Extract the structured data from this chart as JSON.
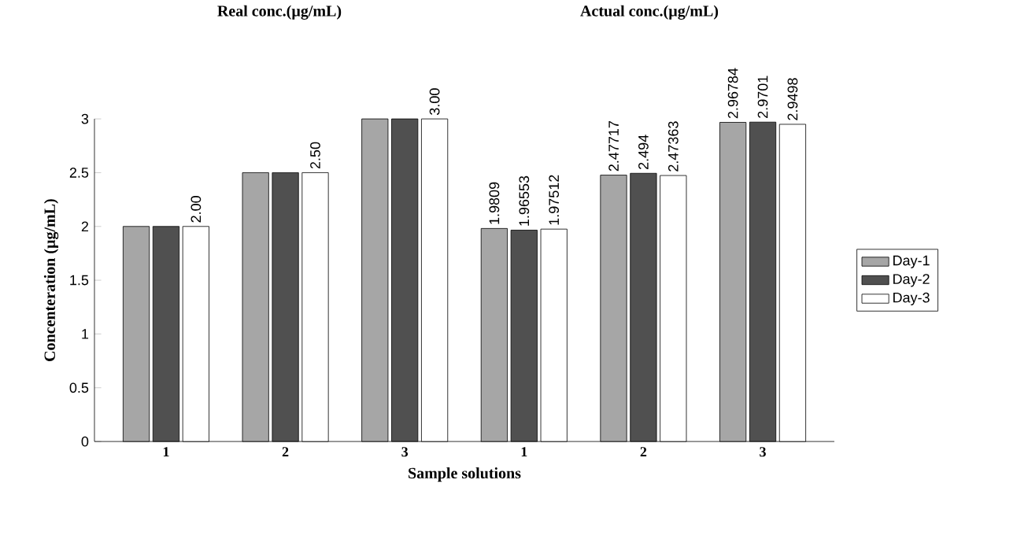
{
  "chart_data": {
    "type": "bar",
    "xlabel": "Sample solutions",
    "ylabel": "Concenteration (µg/mL)",
    "annotations": [
      "Real conc.(µg/mL)",
      "Actual conc.(µg/mL)"
    ],
    "categories": [
      "1",
      "2",
      "3",
      "1",
      "2",
      "3"
    ],
    "series": [
      {
        "name": "Day-1",
        "color": "#a6a6a6",
        "values": [
          2.0,
          2.5,
          3.0,
          1.9809,
          2.47717,
          2.96784
        ],
        "value_labels": [
          null,
          null,
          null,
          "1.9809",
          "2.47717",
          "2.96784"
        ]
      },
      {
        "name": "Day-2",
        "color": "#505050",
        "values": [
          2.0,
          2.5,
          3.0,
          1.96553,
          2.494,
          2.9701
        ],
        "value_labels": [
          null,
          null,
          null,
          "1.96553",
          "2.494",
          "2.9701"
        ]
      },
      {
        "name": "Day-3",
        "color": "#ffffff",
        "values": [
          2.0,
          2.5,
          3.0,
          1.97512,
          2.47363,
          2.9498
        ],
        "value_labels": [
          "2.00",
          "2.50",
          "3.00",
          "1.97512",
          "2.47363",
          "2.9498"
        ]
      }
    ],
    "ylim": [
      0,
      3
    ],
    "yticks": [
      0,
      0.5,
      1,
      1.5,
      2,
      2.5,
      3
    ],
    "grid": false,
    "legend": "right"
  }
}
